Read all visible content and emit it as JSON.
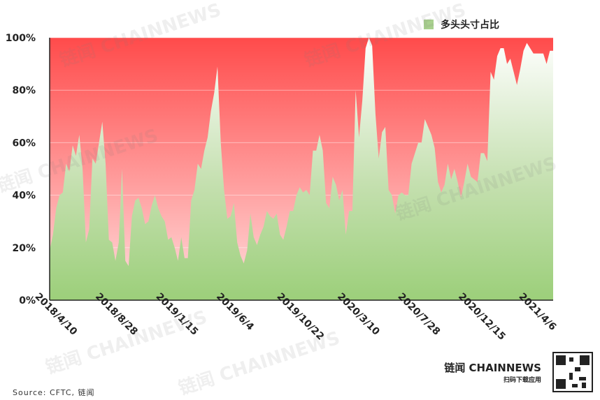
{
  "chart_data": {
    "type": "area",
    "legend": {
      "label": "多头头寸占比",
      "placement": "top-right",
      "color": "#a9d18e"
    },
    "ylim": [
      0,
      100
    ],
    "yticks": [
      "0%",
      "20%",
      "40%",
      "60%",
      "80%",
      "100%"
    ],
    "xtick_labels": [
      "2018/4/10",
      "2018/8/28",
      "2019/1/15",
      "2019/6/4",
      "2019/10/22",
      "2020/3/10",
      "2020/7/28",
      "2020/12/15",
      "2021/4/6"
    ],
    "colors": {
      "long_fill_top": "#ffffff",
      "long_fill_bottom": "#9ccf7a",
      "remainder_top": "#ff4b4b",
      "remainder_bottom": "#ffd6d6"
    },
    "series": [
      {
        "name": "多头头寸占比",
        "x_start": "2018/4/10",
        "x_end": "2021/4/20",
        "values": [
          19,
          25,
          35,
          40,
          41,
          52,
          49,
          59,
          55,
          63,
          50,
          22,
          27,
          54,
          52,
          60,
          68,
          52,
          23,
          22,
          15,
          22,
          50,
          15,
          13,
          32,
          38,
          39,
          35,
          29,
          30,
          36,
          40,
          35,
          32,
          30,
          23,
          24,
          20,
          15,
          24,
          16,
          16,
          38,
          42,
          52,
          50,
          57,
          62,
          72,
          79,
          89,
          60,
          42,
          31,
          32,
          37,
          22,
          17,
          14,
          19,
          33,
          24,
          21,
          25,
          28,
          34,
          32,
          31,
          33,
          25,
          23,
          28,
          34,
          34,
          40,
          43,
          41,
          42,
          40,
          57,
          57,
          63,
          57,
          37,
          35,
          47,
          44,
          38,
          42,
          25,
          34,
          34,
          80,
          62,
          76,
          96,
          100,
          97,
          71,
          54,
          64,
          66,
          42,
          40,
          33,
          40,
          41,
          40,
          40,
          52,
          56,
          60,
          60,
          69,
          66,
          63,
          58,
          45,
          41,
          44,
          52,
          46,
          50,
          45,
          39,
          45,
          52,
          47,
          46,
          45,
          56,
          56,
          53,
          87,
          84,
          93,
          96,
          96,
          90,
          92,
          87,
          82,
          88,
          95,
          98,
          96,
          94,
          94,
          94,
          94,
          90,
          95,
          95
        ]
      }
    ]
  },
  "watermark_text": "链闻 CHAINNEWS",
  "brand": {
    "name": "链闻 CHAINNEWS",
    "subtitle": "扫码下载应用"
  },
  "source_text": "Source: CFTC, 链闻"
}
